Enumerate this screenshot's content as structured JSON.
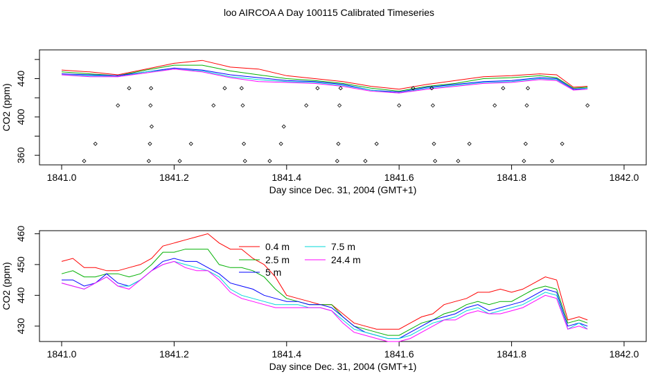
{
  "title": "loo AIRCOA A  Day 100115  Calibrated Timeseries",
  "colors": {
    "0.4 m": "#ff0000",
    "2.5 m": "#00b000",
    "5 m": "#0000ff",
    "7.5 m": "#00d8d8",
    "24.4 m": "#ff00ff"
  },
  "chart_data": [
    {
      "type": "line",
      "title": "",
      "xlabel": "Day since Dec. 31, 2004 (GMT+1)",
      "ylabel": "CO2 (ppm)",
      "xlim": [
        1841.0,
        1842.0
      ],
      "ylim": [
        350,
        470
      ],
      "xticks": [
        "1841.0",
        "1841.2",
        "1841.4",
        "1841.6",
        "1841.8",
        "1842.0"
      ],
      "yticks": [
        "360",
        "400",
        "440"
      ],
      "grid": false,
      "series": [
        {
          "name": "0.4 m",
          "x": [
            1841.0,
            1841.05,
            1841.1,
            1841.15,
            1841.2,
            1841.25,
            1841.3,
            1841.35,
            1841.4,
            1841.45,
            1841.5,
            1841.55,
            1841.6,
            1841.65,
            1841.7,
            1841.75,
            1841.8,
            1841.85,
            1841.88,
            1841.91,
            1841.935
          ],
          "y": [
            449,
            447,
            444,
            450,
            456,
            459,
            452,
            450,
            443,
            440,
            437,
            432,
            429,
            434,
            438,
            442,
            443,
            445,
            444,
            431,
            432
          ]
        },
        {
          "name": "2.5 m",
          "x": [
            1841.0,
            1841.05,
            1841.1,
            1841.15,
            1841.2,
            1841.25,
            1841.3,
            1841.35,
            1841.4,
            1841.45,
            1841.5,
            1841.55,
            1841.6,
            1841.65,
            1841.7,
            1841.75,
            1841.8,
            1841.85,
            1841.88,
            1841.91,
            1841.935
          ],
          "y": [
            447,
            445,
            443,
            449,
            454,
            454,
            448,
            444,
            440,
            438,
            435,
            430,
            427,
            432,
            435,
            440,
            441,
            443,
            441,
            430,
            431
          ]
        },
        {
          "name": "5 m",
          "x": [
            1841.0,
            1841.05,
            1841.1,
            1841.15,
            1841.2,
            1841.25,
            1841.3,
            1841.35,
            1841.4,
            1841.45,
            1841.5,
            1841.55,
            1841.6,
            1841.65,
            1841.7,
            1841.75,
            1841.8,
            1841.85,
            1841.88,
            1841.91,
            1841.935
          ],
          "y": [
            445,
            444,
            443,
            447,
            451,
            449,
            444,
            441,
            438,
            437,
            434,
            428,
            426,
            431,
            434,
            437,
            438,
            441,
            440,
            429,
            430
          ]
        },
        {
          "name": "7.5 m",
          "x": [
            1841.0,
            1841.05,
            1841.1,
            1841.15,
            1841.2,
            1841.25,
            1841.3,
            1841.35,
            1841.4,
            1841.45,
            1841.5,
            1841.55,
            1841.6,
            1841.65,
            1841.7,
            1841.75,
            1841.8,
            1841.85,
            1841.88,
            1841.91,
            1841.935
          ],
          "y": [
            444,
            443,
            442,
            447,
            450,
            448,
            442,
            439,
            437,
            436,
            433,
            428,
            425,
            430,
            433,
            436,
            437,
            440,
            439,
            428,
            430
          ]
        },
        {
          "name": "24.4 m",
          "x": [
            1841.0,
            1841.05,
            1841.1,
            1841.15,
            1841.2,
            1841.25,
            1841.3,
            1841.35,
            1841.4,
            1841.45,
            1841.5,
            1841.55,
            1841.6,
            1841.65,
            1841.7,
            1841.75,
            1841.8,
            1841.85,
            1841.88,
            1841.91,
            1841.935
          ],
          "y": [
            444,
            442,
            442,
            446,
            450,
            447,
            441,
            437,
            436,
            435,
            432,
            427,
            425,
            429,
            432,
            435,
            436,
            439,
            438,
            428,
            429
          ]
        }
      ],
      "points": {
        "x": [
          1841.04,
          1841.06,
          1841.1,
          1841.12,
          1841.155,
          1841.157,
          1841.158,
          1841.159,
          1841.16,
          1841.21,
          1841.23,
          1841.27,
          1841.29,
          1841.32,
          1841.322,
          1841.324,
          1841.326,
          1841.37,
          1841.39,
          1841.395,
          1841.435,
          1841.455,
          1841.49,
          1841.492,
          1841.494,
          1841.496,
          1841.54,
          1841.56,
          1841.6,
          1841.625,
          1841.658,
          1841.66,
          1841.662,
          1841.664,
          1841.705,
          1841.725,
          1841.77,
          1841.785,
          1841.822,
          1841.825,
          1841.827,
          1841.829,
          1841.872,
          1841.89,
          1841.935
        ],
        "y": [
          354,
          372,
          412,
          430,
          354,
          372,
          412,
          430,
          390,
          354,
          372,
          412,
          430,
          430,
          412,
          372,
          354,
          354,
          372,
          390,
          412,
          430,
          354,
          372,
          412,
          430,
          354,
          372,
          412,
          430,
          430,
          412,
          372,
          354,
          354,
          372,
          412,
          430,
          354,
          372,
          412,
          430,
          354,
          372,
          412
        ]
      }
    },
    {
      "type": "line",
      "title": "",
      "xlabel": "Day since Dec. 31, 2004 (GMT+1)",
      "ylabel": "CO2 (ppm)",
      "xlim": [
        1841.0,
        1842.0
      ],
      "ylim": [
        425,
        461
      ],
      "xticks": [
        "1841.0",
        "1841.2",
        "1841.4",
        "1841.6",
        "1841.8",
        "1842.0"
      ],
      "yticks": [
        "430",
        "440",
        "450",
        "460"
      ],
      "grid": false,
      "legend": "top-center",
      "series": [
        {
          "name": "0.4 m",
          "x": [
            1841.0,
            1841.02,
            1841.04,
            1841.06,
            1841.08,
            1841.1,
            1841.12,
            1841.14,
            1841.16,
            1841.18,
            1841.2,
            1841.22,
            1841.24,
            1841.26,
            1841.28,
            1841.3,
            1841.32,
            1841.34,
            1841.36,
            1841.38,
            1841.4,
            1841.42,
            1841.44,
            1841.46,
            1841.48,
            1841.5,
            1841.52,
            1841.54,
            1841.56,
            1841.58,
            1841.6,
            1841.62,
            1841.64,
            1841.66,
            1841.68,
            1841.7,
            1841.72,
            1841.74,
            1841.76,
            1841.78,
            1841.8,
            1841.82,
            1841.84,
            1841.86,
            1841.88,
            1841.9,
            1841.92,
            1841.935
          ],
          "y": [
            451,
            452,
            449,
            449,
            448,
            448,
            449,
            450,
            452,
            456,
            457,
            458,
            459,
            460,
            457,
            455,
            455,
            452,
            450,
            446,
            440,
            439,
            438,
            437,
            437,
            434,
            431,
            430,
            429,
            429,
            429,
            431,
            433,
            434,
            437,
            438,
            439,
            441,
            441,
            442,
            441,
            442,
            444,
            446,
            445,
            432,
            433,
            432
          ]
        },
        {
          "name": "2.5 m",
          "x": [
            1841.0,
            1841.02,
            1841.04,
            1841.06,
            1841.08,
            1841.1,
            1841.12,
            1841.14,
            1841.16,
            1841.18,
            1841.2,
            1841.22,
            1841.24,
            1841.26,
            1841.28,
            1841.3,
            1841.32,
            1841.34,
            1841.36,
            1841.38,
            1841.4,
            1841.42,
            1841.44,
            1841.46,
            1841.48,
            1841.5,
            1841.52,
            1841.54,
            1841.56,
            1841.58,
            1841.6,
            1841.62,
            1841.64,
            1841.66,
            1841.68,
            1841.7,
            1841.72,
            1841.74,
            1841.76,
            1841.78,
            1841.8,
            1841.82,
            1841.84,
            1841.86,
            1841.88,
            1841.9,
            1841.92,
            1841.935
          ],
          "y": [
            447,
            448,
            446,
            446,
            447,
            447,
            446,
            447,
            450,
            454,
            454,
            455,
            455,
            455,
            450,
            449,
            449,
            448,
            446,
            442,
            439,
            438,
            437,
            437,
            437,
            433,
            430,
            429,
            428,
            427,
            427,
            429,
            431,
            432,
            434,
            435,
            437,
            438,
            437,
            438,
            438,
            440,
            442,
            443,
            442,
            431,
            432,
            431
          ]
        },
        {
          "name": "5 m",
          "x": [
            1841.0,
            1841.02,
            1841.04,
            1841.06,
            1841.08,
            1841.1,
            1841.12,
            1841.14,
            1841.16,
            1841.18,
            1841.2,
            1841.22,
            1841.24,
            1841.26,
            1841.28,
            1841.3,
            1841.32,
            1841.34,
            1841.36,
            1841.38,
            1841.4,
            1841.42,
            1841.44,
            1841.46,
            1841.48,
            1841.5,
            1841.52,
            1841.54,
            1841.56,
            1841.58,
            1841.6,
            1841.62,
            1841.64,
            1841.66,
            1841.68,
            1841.7,
            1841.72,
            1841.74,
            1841.76,
            1841.78,
            1841.8,
            1841.82,
            1841.84,
            1841.86,
            1841.88,
            1841.9,
            1841.92,
            1841.935
          ],
          "y": [
            445,
            445,
            443,
            444,
            447,
            444,
            443,
            445,
            448,
            451,
            452,
            451,
            451,
            449,
            447,
            444,
            443,
            442,
            440,
            439,
            438,
            438,
            437,
            437,
            436,
            433,
            430,
            428,
            427,
            426,
            426,
            428,
            430,
            432,
            433,
            434,
            436,
            437,
            435,
            436,
            437,
            438,
            440,
            442,
            441,
            430,
            431,
            430
          ]
        },
        {
          "name": "7.5 m",
          "x": [
            1841.0,
            1841.02,
            1841.04,
            1841.06,
            1841.08,
            1841.1,
            1841.12,
            1841.14,
            1841.16,
            1841.18,
            1841.2,
            1841.22,
            1841.24,
            1841.26,
            1841.28,
            1841.3,
            1841.32,
            1841.34,
            1841.36,
            1841.38,
            1841.4,
            1841.42,
            1841.44,
            1841.46,
            1841.48,
            1841.5,
            1841.52,
            1841.54,
            1841.56,
            1841.58,
            1841.6,
            1841.62,
            1841.64,
            1841.66,
            1841.68,
            1841.7,
            1841.72,
            1841.74,
            1841.76,
            1841.78,
            1841.8,
            1841.82,
            1841.84,
            1841.86,
            1841.88,
            1841.9,
            1841.92,
            1841.935
          ],
          "y": [
            444,
            443,
            442,
            444,
            446,
            443,
            443,
            445,
            448,
            450,
            451,
            450,
            449,
            448,
            446,
            442,
            440,
            439,
            438,
            437,
            437,
            437,
            436,
            436,
            435,
            432,
            429,
            428,
            427,
            426,
            426,
            427,
            429,
            431,
            432,
            433,
            435,
            436,
            434,
            435,
            436,
            437,
            439,
            441,
            440,
            429,
            431,
            429
          ]
        },
        {
          "name": "24.4 m",
          "x": [
            1841.0,
            1841.02,
            1841.04,
            1841.06,
            1841.08,
            1841.1,
            1841.12,
            1841.14,
            1841.16,
            1841.18,
            1841.2,
            1841.22,
            1841.24,
            1841.26,
            1841.28,
            1841.3,
            1841.32,
            1841.34,
            1841.36,
            1841.38,
            1841.4,
            1841.42,
            1841.44,
            1841.46,
            1841.48,
            1841.5,
            1841.52,
            1841.54,
            1841.56,
            1841.58,
            1841.6,
            1841.62,
            1841.64,
            1841.66,
            1841.68,
            1841.7,
            1841.72,
            1841.74,
            1841.76,
            1841.78,
            1841.8,
            1841.82,
            1841.84,
            1841.86,
            1841.88,
            1841.9,
            1841.92,
            1841.935
          ],
          "y": [
            444,
            443,
            442,
            444,
            446,
            443,
            442,
            445,
            448,
            450,
            451,
            449,
            448,
            448,
            445,
            441,
            439,
            438,
            437,
            436,
            436,
            436,
            436,
            436,
            435,
            431,
            428,
            427,
            426,
            425,
            425,
            426,
            428,
            430,
            432,
            432,
            434,
            435,
            434,
            434,
            435,
            436,
            438,
            440,
            439,
            429,
            430,
            429
          ]
        }
      ]
    }
  ]
}
